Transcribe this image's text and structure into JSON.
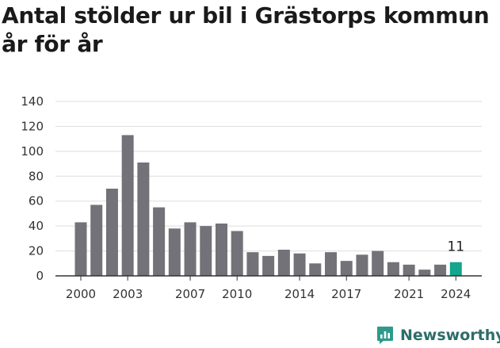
{
  "chart_data": {
    "type": "bar",
    "title_lines": [
      "Antal stölder ur bil i Grästorps kommun",
      "år för år"
    ],
    "x": [
      2000,
      2001,
      2002,
      2003,
      2004,
      2005,
      2006,
      2007,
      2008,
      2009,
      2010,
      2011,
      2012,
      2013,
      2014,
      2015,
      2016,
      2017,
      2018,
      2019,
      2020,
      2021,
      2022,
      2023,
      2024
    ],
    "values": [
      43,
      57,
      70,
      113,
      91,
      55,
      38,
      43,
      40,
      42,
      36,
      19,
      16,
      21,
      18,
      10,
      19,
      12,
      17,
      20,
      11,
      9,
      5,
      9,
      11
    ],
    "x_tick_labels": [
      "2000",
      "2003",
      "2007",
      "2010",
      "2014",
      "2017",
      "2021",
      "2024"
    ],
    "y_ticks": [
      "0",
      "20",
      "40",
      "60",
      "80",
      "100",
      "120",
      "140"
    ],
    "ylim": [
      0,
      140
    ],
    "xlabel": "",
    "ylabel": "",
    "grid": true,
    "highlight": {
      "year": 2024,
      "label": "11"
    },
    "colors": {
      "bar": "#737278",
      "highlight": "#13a58e",
      "grid": "#dddddd",
      "axis": "#333333"
    }
  },
  "brand": {
    "name": "Newsworthy",
    "icon": "newsworthy-logo-icon",
    "color": "#2f9a8c",
    "text_color": "#2c6e68"
  }
}
